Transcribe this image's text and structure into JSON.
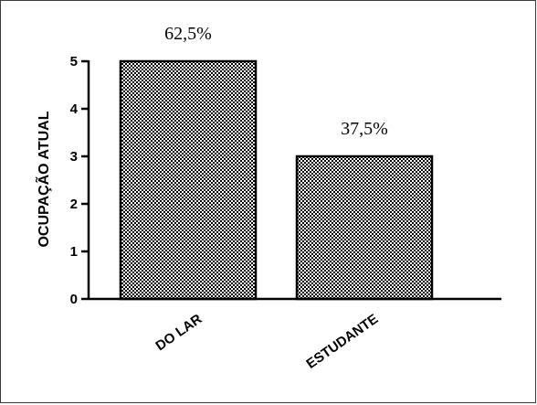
{
  "chart_data": {
    "type": "bar",
    "categories": [
      "DO LAR",
      "ESTUDANTE"
    ],
    "values": [
      5,
      3
    ],
    "data_labels": [
      "62,5%",
      "37,5%"
    ],
    "title": "",
    "xlabel": "",
    "ylabel": "OCUPAÇÃO ATUAL",
    "ylim": [
      0,
      5
    ],
    "yticks": [
      "0",
      "1",
      "2",
      "3",
      "4",
      "5"
    ],
    "grid": false,
    "bar_fill": "checkered",
    "colors": {
      "bar_dark": "#000000",
      "bar_light": "#ffffff",
      "axis": "#000000"
    }
  }
}
